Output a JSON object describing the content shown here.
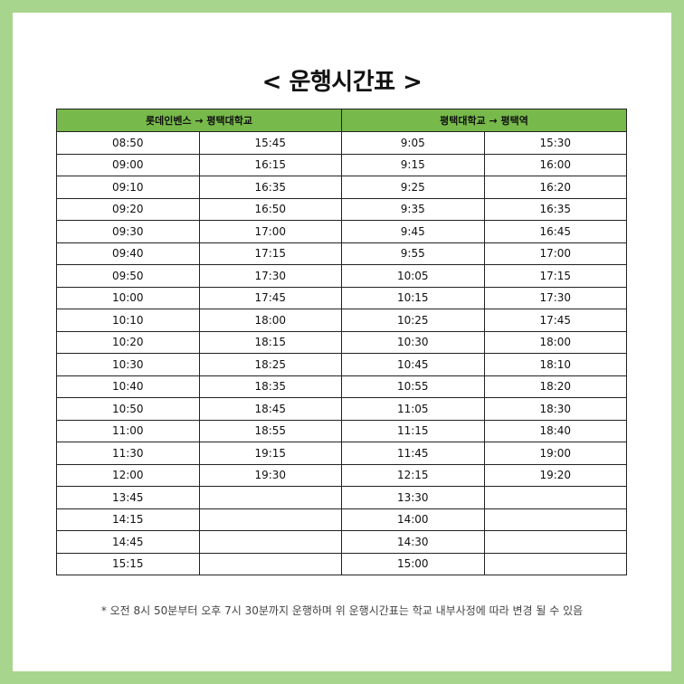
{
  "title": "< 운행시간표 >",
  "headers": {
    "route1": "롯데인벤스 → 평택대학교",
    "route2": "평택대학교 → 평택역"
  },
  "rows": [
    [
      "08:50",
      "15:45",
      "9:05",
      "15:30"
    ],
    [
      "09:00",
      "16:15",
      "9:15",
      "16:00"
    ],
    [
      "09:10",
      "16:35",
      "9:25",
      "16:20"
    ],
    [
      "09:20",
      "16:50",
      "9:35",
      "16:35"
    ],
    [
      "09:30",
      "17:00",
      "9:45",
      "16:45"
    ],
    [
      "09:40",
      "17:15",
      "9:55",
      "17:00"
    ],
    [
      "09:50",
      "17:30",
      "10:05",
      "17:15"
    ],
    [
      "10:00",
      "17:45",
      "10:15",
      "17:30"
    ],
    [
      "10:10",
      "18:00",
      "10:25",
      "17:45"
    ],
    [
      "10:20",
      "18:15",
      "10:30",
      "18:00"
    ],
    [
      "10:30",
      "18:25",
      "10:45",
      "18:10"
    ],
    [
      "10:40",
      "18:35",
      "10:55",
      "18:20"
    ],
    [
      "10:50",
      "18:45",
      "11:05",
      "18:30"
    ],
    [
      "11:00",
      "18:55",
      "11:15",
      "18:40"
    ],
    [
      "11:30",
      "19:15",
      "11:45",
      "19:00"
    ],
    [
      "12:00",
      "19:30",
      "12:15",
      "19:20"
    ],
    [
      "13:45",
      "",
      "13:30",
      ""
    ],
    [
      "14:15",
      "",
      "14:00",
      ""
    ],
    [
      "14:45",
      "",
      "14:30",
      ""
    ],
    [
      "15:15",
      "",
      "15:00",
      ""
    ]
  ],
  "note": "* 오전 8시 50분부터 오후 7시 30분까지 운행하며 위 운행시간표는 학교 내부사정에 따라 변경 될 수 있음",
  "colors": {
    "frame": "#a8d58e",
    "header": "#77b94a"
  }
}
